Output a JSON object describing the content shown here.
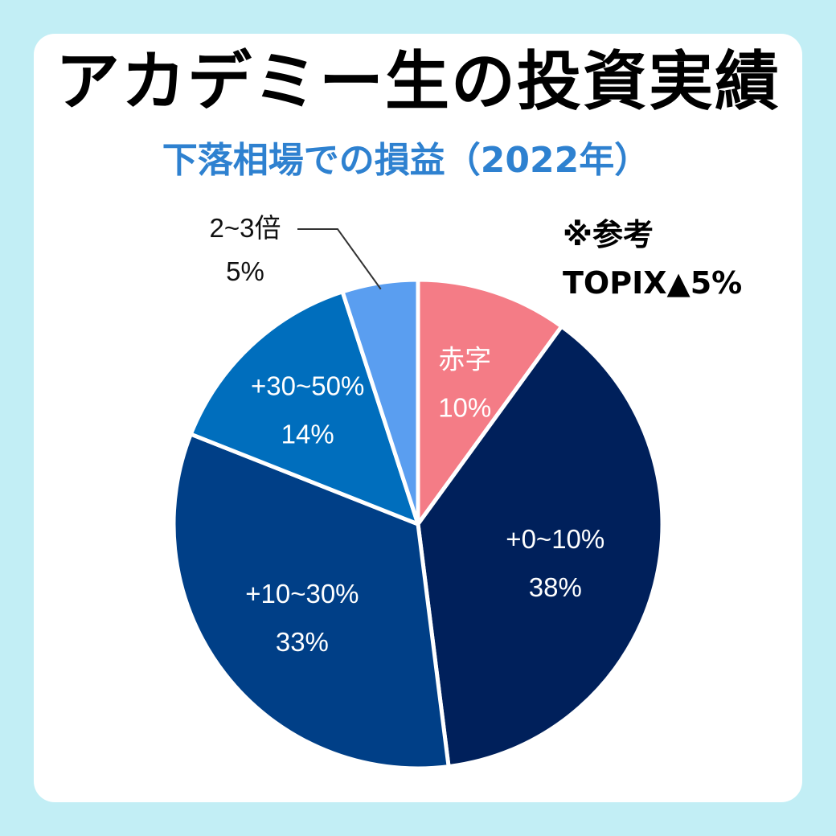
{
  "title": "アカデミー生の投資実績",
  "subtitle": "下落相場での損益（2022年）",
  "note": {
    "line1": "※参考",
    "line2": "TOPIX▲5%"
  },
  "chart_data": {
    "type": "pie",
    "title": "アカデミー生の投資実績",
    "subtitle": "下落相場での損益（2022年）",
    "slices": [
      {
        "label": "赤字",
        "value": 10,
        "value_label": "10%",
        "color": "#f47c86"
      },
      {
        "label": "+0~10%",
        "value": 38,
        "value_label": "38%",
        "color": "#00205b"
      },
      {
        "label": "+10~30%",
        "value": 33,
        "value_label": "33%",
        "color": "#003f87"
      },
      {
        "label": "+30~50%",
        "value": 14,
        "value_label": "14%",
        "color": "#006ebd"
      },
      {
        "label": "2~3倍",
        "value": 5,
        "value_label": "5%",
        "color": "#5a9ef0"
      }
    ],
    "start_angle_deg": 0,
    "direction": "clockwise",
    "separator_color": "#ffffff"
  }
}
